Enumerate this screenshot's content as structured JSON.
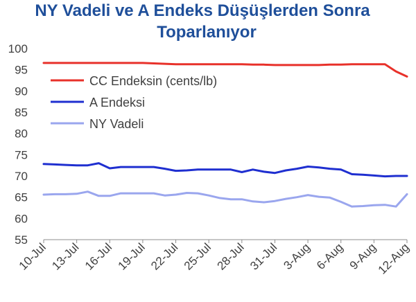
{
  "chart_data": {
    "type": "line",
    "title_lines": [
      "NY Vadeli ve A Endeks Düşüşlerden Sonra",
      "Toparlanıyor"
    ],
    "xlabel": "",
    "ylabel": "",
    "ylim": [
      55,
      100
    ],
    "yticks": [
      55,
      60,
      65,
      70,
      75,
      80,
      85,
      90,
      95,
      100
    ],
    "grid": false,
    "legend_position": "top-left",
    "x_tick_labels": [
      "10-Jul",
      "13-Jul",
      "16-Jul",
      "19-Jul",
      "22-Jul",
      "25-Jul",
      "28-Jul",
      "31-Jul",
      "3-Aug",
      "6-Aug",
      "9-Aug",
      "12-Aug"
    ],
    "x": [
      "10-Jul",
      "11-Jul",
      "12-Jul",
      "13-Jul",
      "14-Jul",
      "15-Jul",
      "16-Jul",
      "17-Jul",
      "18-Jul",
      "19-Jul",
      "20-Jul",
      "21-Jul",
      "22-Jul",
      "23-Jul",
      "24-Jul",
      "25-Jul",
      "26-Jul",
      "27-Jul",
      "28-Jul",
      "29-Jul",
      "30-Jul",
      "31-Jul",
      "1-Aug",
      "2-Aug",
      "3-Aug",
      "4-Aug",
      "5-Aug",
      "6-Aug",
      "7-Aug",
      "8-Aug",
      "9-Aug",
      "10-Aug",
      "11-Aug",
      "12-Aug"
    ],
    "series": [
      {
        "name": "CC Endeksin (cents/lb)",
        "color": "#e8312a",
        "values": [
          96.6,
          96.6,
          96.6,
          96.6,
          96.6,
          96.6,
          96.6,
          96.6,
          96.6,
          96.6,
          96.5,
          96.4,
          96.3,
          96.3,
          96.3,
          96.3,
          96.3,
          96.3,
          96.3,
          96.2,
          96.2,
          96.1,
          96.1,
          96.1,
          96.1,
          96.1,
          96.2,
          96.2,
          96.3,
          96.3,
          96.3,
          96.3,
          94.6,
          93.4
        ]
      },
      {
        "name": "A Endeksi",
        "color": "#1f2fd0",
        "values": [
          72.8,
          72.7,
          72.6,
          72.5,
          72.5,
          73.0,
          71.8,
          72.1,
          72.1,
          72.1,
          72.1,
          71.7,
          71.2,
          71.3,
          71.5,
          71.5,
          71.5,
          71.5,
          70.9,
          71.5,
          71.0,
          70.7,
          71.3,
          71.7,
          72.2,
          72.0,
          71.7,
          71.5,
          70.4,
          70.3,
          70.1,
          69.9,
          70.0,
          70.0
        ]
      },
      {
        "name": "NY Vadeli",
        "color": "#9aa6ee",
        "values": [
          65.6,
          65.7,
          65.7,
          65.8,
          66.3,
          65.3,
          65.3,
          65.9,
          65.9,
          65.9,
          65.9,
          65.4,
          65.6,
          66.0,
          65.9,
          65.4,
          64.8,
          64.5,
          64.5,
          64.0,
          63.8,
          64.1,
          64.6,
          65.0,
          65.5,
          65.1,
          64.9,
          63.9,
          62.8,
          62.9,
          63.1,
          63.2,
          62.8,
          65.7
        ]
      }
    ]
  }
}
